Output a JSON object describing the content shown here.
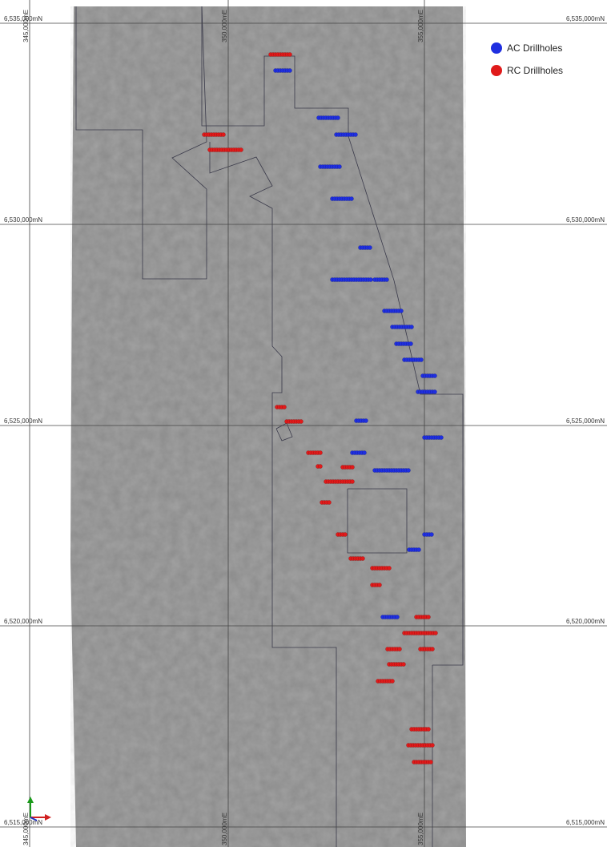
{
  "grid": {
    "northings": [
      "6,535,000mN",
      "6,530,000mN",
      "6,525,000mN",
      "6,520,000mN",
      "6,515,000mN"
    ],
    "eastings": [
      "345,000mE",
      "350,000mE",
      "355,000mE"
    ]
  },
  "legend": {
    "items": [
      {
        "label": "AC Drillholes",
        "color": "#1f2fe0"
      },
      {
        "label": "RC Drillholes",
        "color": "#e01a1a"
      }
    ]
  }
}
